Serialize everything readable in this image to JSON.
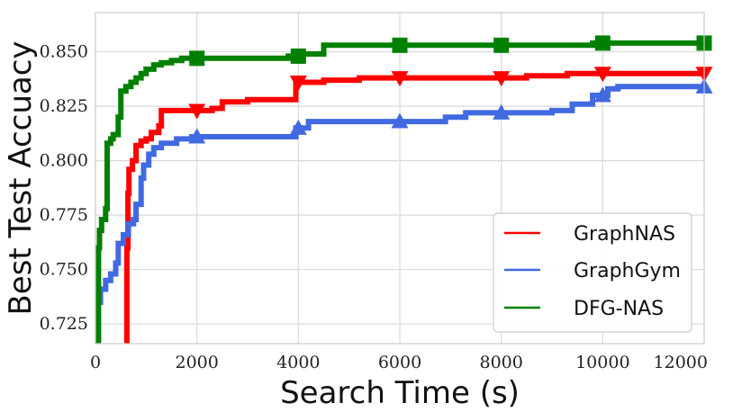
{
  "chart_data": {
    "type": "line",
    "xlabel": "Search Time (s)",
    "ylabel": "Best Test Accuacy",
    "xlim": [
      0,
      12000
    ],
    "ylim": [
      0.716,
      0.868
    ],
    "xticks": [
      0,
      2000,
      4000,
      6000,
      8000,
      10000,
      12000
    ],
    "xtick_labels": [
      "0",
      "2000",
      "4000",
      "6000",
      "8000",
      "10000",
      "12000"
    ],
    "yticks": [
      0.725,
      0.75,
      0.775,
      0.8,
      0.825,
      0.85
    ],
    "ytick_labels": [
      "0.725",
      "0.750",
      "0.775",
      "0.800",
      "0.825",
      "0.850"
    ],
    "grid": true,
    "legend_position": "bottom-right",
    "series": [
      {
        "name": "GraphNAS",
        "color": "#ff0000",
        "marker": "triangle-down",
        "marker_x": [
          2000,
          4000,
          6000,
          8000,
          10000,
          12000
        ],
        "points": [
          [
            620,
            0.7
          ],
          [
            620,
            0.76
          ],
          [
            640,
            0.785
          ],
          [
            660,
            0.796
          ],
          [
            730,
            0.8
          ],
          [
            800,
            0.807
          ],
          [
            900,
            0.809
          ],
          [
            1000,
            0.81
          ],
          [
            1100,
            0.813
          ],
          [
            1250,
            0.816
          ],
          [
            1300,
            0.823
          ],
          [
            2000,
            0.823
          ],
          [
            2300,
            0.824
          ],
          [
            2500,
            0.827
          ],
          [
            3000,
            0.828
          ],
          [
            3900,
            0.828
          ],
          [
            3950,
            0.836
          ],
          [
            4500,
            0.837
          ],
          [
            5200,
            0.838
          ],
          [
            7000,
            0.838
          ],
          [
            8500,
            0.839
          ],
          [
            9300,
            0.84
          ],
          [
            12000,
            0.84
          ]
        ]
      },
      {
        "name": "GraphGym",
        "color": "#4169e1",
        "marker": "triangle-up",
        "marker_x": [
          2000,
          4000,
          6000,
          8000,
          10000,
          12000
        ],
        "points": [
          [
            0,
            0.716
          ],
          [
            40,
            0.735
          ],
          [
            100,
            0.741
          ],
          [
            200,
            0.745
          ],
          [
            300,
            0.748
          ],
          [
            400,
            0.753
          ],
          [
            450,
            0.762
          ],
          [
            550,
            0.766
          ],
          [
            650,
            0.771
          ],
          [
            750,
            0.773
          ],
          [
            800,
            0.78
          ],
          [
            900,
            0.792
          ],
          [
            950,
            0.798
          ],
          [
            1050,
            0.803
          ],
          [
            1150,
            0.806
          ],
          [
            1300,
            0.808
          ],
          [
            1600,
            0.81
          ],
          [
            1900,
            0.811
          ],
          [
            3900,
            0.811
          ],
          [
            3950,
            0.815
          ],
          [
            4200,
            0.818
          ],
          [
            6400,
            0.818
          ],
          [
            6900,
            0.82
          ],
          [
            7300,
            0.822
          ],
          [
            8800,
            0.822
          ],
          [
            9000,
            0.823
          ],
          [
            9400,
            0.826
          ],
          [
            9800,
            0.83
          ],
          [
            10100,
            0.833
          ],
          [
            10300,
            0.834
          ],
          [
            12000,
            0.834
          ]
        ]
      },
      {
        "name": "DFG-NAS",
        "color": "#008000",
        "marker": "square",
        "marker_x": [
          2000,
          4000,
          6000,
          8000,
          10000,
          12000
        ],
        "points": [
          [
            60,
            0.7
          ],
          [
            60,
            0.76
          ],
          [
            80,
            0.768
          ],
          [
            120,
            0.773
          ],
          [
            200,
            0.778
          ],
          [
            230,
            0.808
          ],
          [
            300,
            0.81
          ],
          [
            350,
            0.812
          ],
          [
            450,
            0.82
          ],
          [
            500,
            0.832
          ],
          [
            600,
            0.834
          ],
          [
            700,
            0.836
          ],
          [
            800,
            0.838
          ],
          [
            900,
            0.84
          ],
          [
            1000,
            0.842
          ],
          [
            1150,
            0.844
          ],
          [
            1300,
            0.845
          ],
          [
            1500,
            0.846
          ],
          [
            1700,
            0.847
          ],
          [
            3600,
            0.847
          ],
          [
            3800,
            0.848
          ],
          [
            4100,
            0.849
          ],
          [
            4500,
            0.853
          ],
          [
            6000,
            0.853
          ],
          [
            9800,
            0.854
          ],
          [
            12000,
            0.854
          ]
        ]
      }
    ]
  }
}
